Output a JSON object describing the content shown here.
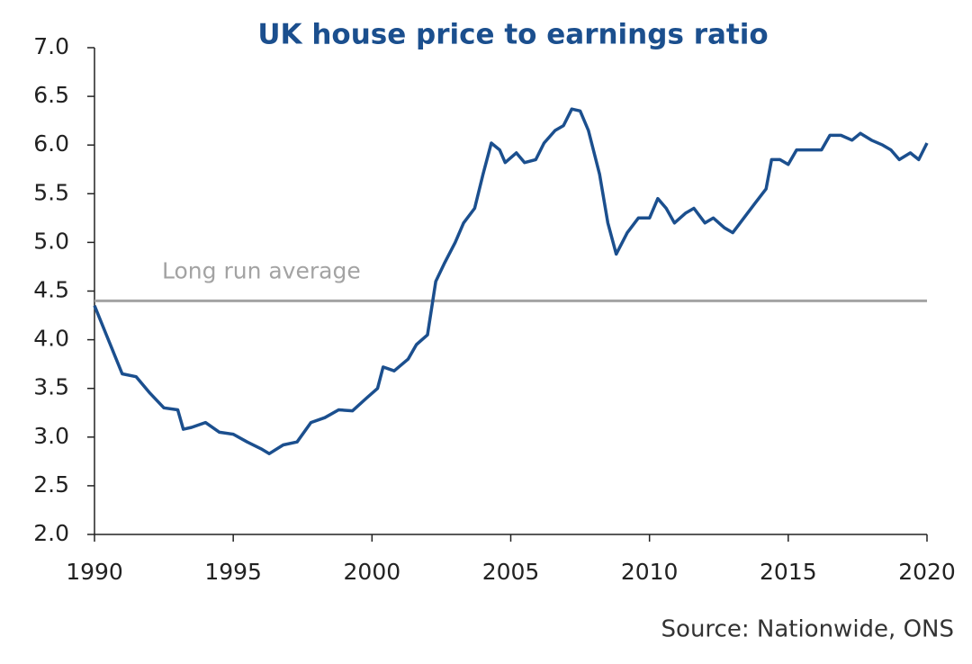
{
  "chart_data": {
    "type": "line",
    "title": "UK house price to earnings ratio",
    "source": "Source: Nationwide, ONS",
    "x": [
      1990.0,
      1990.5,
      1991.0,
      1991.5,
      1992.0,
      1992.5,
      1993.0,
      1993.2,
      1993.5,
      1994.0,
      1994.5,
      1995.0,
      1995.5,
      1996.0,
      1996.3,
      1996.8,
      1997.3,
      1997.8,
      1998.3,
      1998.8,
      1999.3,
      1999.8,
      2000.2,
      2000.4,
      2000.8,
      2001.3,
      2001.6,
      2002.0,
      2002.3,
      2002.6,
      2003.0,
      2003.3,
      2003.7,
      2004.0,
      2004.3,
      2004.6,
      2004.8,
      2005.2,
      2005.5,
      2005.9,
      2006.2,
      2006.6,
      2006.9,
      2007.2,
      2007.5,
      2007.8,
      2008.2,
      2008.5,
      2008.8,
      2009.2,
      2009.6,
      2010.0,
      2010.3,
      2010.6,
      2010.9,
      2011.3,
      2011.6,
      2012.0,
      2012.3,
      2012.7,
      2013.0,
      2013.4,
      2013.8,
      2014.2,
      2014.4,
      2014.7,
      2015.0,
      2015.3,
      2015.8,
      2016.2,
      2016.5,
      2016.9,
      2017.3,
      2017.6,
      2018.0,
      2018.4,
      2018.7,
      2019.0,
      2019.4,
      2019.7,
      2020.0
    ],
    "series": [
      {
        "name": "House price to earnings ratio",
        "color": "#1b4f8e",
        "values": [
          4.35,
          4.0,
          3.65,
          3.62,
          3.45,
          3.3,
          3.28,
          3.08,
          3.1,
          3.15,
          3.05,
          3.03,
          2.95,
          2.88,
          2.83,
          2.92,
          2.95,
          3.15,
          3.2,
          3.28,
          3.27,
          3.4,
          3.5,
          3.72,
          3.68,
          3.8,
          3.95,
          4.05,
          4.6,
          4.78,
          5.0,
          5.2,
          5.35,
          5.7,
          6.02,
          5.95,
          5.82,
          5.92,
          5.82,
          5.85,
          6.02,
          6.15,
          6.2,
          6.37,
          6.35,
          6.15,
          5.7,
          5.2,
          4.88,
          5.1,
          5.25,
          5.25,
          5.45,
          5.35,
          5.2,
          5.3,
          5.35,
          5.2,
          5.25,
          5.15,
          5.1,
          5.25,
          5.4,
          5.55,
          5.85,
          5.85,
          5.8,
          5.95,
          5.95,
          5.95,
          6.1,
          6.1,
          6.05,
          6.12,
          6.05,
          6.0,
          5.95,
          5.85,
          5.92,
          5.85,
          6.02
        ]
      }
    ],
    "reference_line": {
      "value": 4.4,
      "label": "Long run average",
      "color": "#a3a3a3"
    },
    "xlim": [
      1990,
      2020
    ],
    "xticks": [
      1990,
      1995,
      2000,
      2005,
      2010,
      2015,
      2020
    ],
    "ylim": [
      2,
      7
    ],
    "yticks": [
      {
        "value": 2,
        "label": "2.0"
      },
      2.5,
      {
        "value": 3,
        "label": "3.0"
      },
      3.5,
      {
        "value": 4,
        "label": "4.0"
      },
      4.5,
      {
        "value": 5,
        "label": "5.0"
      },
      5.5,
      {
        "value": 6,
        "label": "6.0"
      },
      6.5,
      {
        "value": 7,
        "label": "7.0"
      }
    ]
  }
}
